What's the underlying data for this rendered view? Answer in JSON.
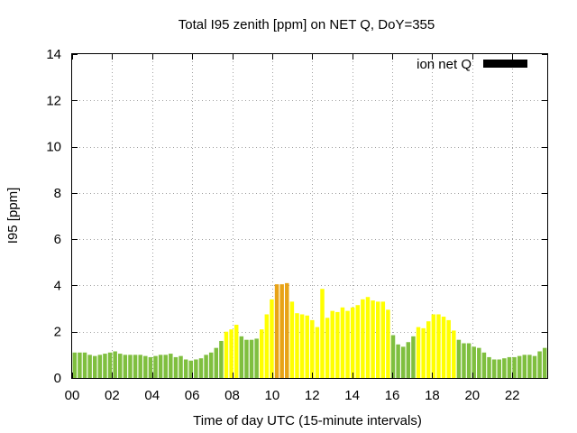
{
  "chart_data": {
    "type": "bar",
    "title": "Total I95 zenith [ppm] on NET Q, DoY=355",
    "xlabel": "Time of day UTC (15-minute intervals)",
    "ylabel": "I95 [ppm]",
    "xlim": [
      0,
      23.75
    ],
    "ylim": [
      0,
      14
    ],
    "xticks": [
      "00",
      "02",
      "04",
      "06",
      "08",
      "10",
      "12",
      "14",
      "16",
      "18",
      "20",
      "22"
    ],
    "yticks": [
      "0",
      "2",
      "4",
      "6",
      "8",
      "10",
      "12",
      "14"
    ],
    "grid": true,
    "legend": {
      "label": "ion net Q",
      "color": "#000000",
      "position": "top-right"
    },
    "colors": {
      "green": "#7fbf3f",
      "yellow": "#ffff00",
      "orange": "#e8a317"
    },
    "series": [
      {
        "values": [
          1.1,
          1.1,
          1.1,
          1.0,
          0.95,
          1.0,
          1.05,
          1.1,
          1.15,
          1.05,
          1.0,
          1.0,
          1.0,
          1.0,
          0.95,
          0.9,
          0.95,
          1.0,
          1.0,
          1.05,
          0.9,
          0.95,
          0.8,
          0.75,
          0.8,
          0.85,
          1.0,
          1.1,
          1.3,
          1.6,
          2.0,
          2.1,
          2.3,
          1.8,
          1.65,
          1.65,
          1.7,
          2.1,
          2.75,
          3.4,
          4.05,
          4.05,
          4.1,
          3.3,
          2.8,
          2.75,
          2.7,
          2.5,
          2.2,
          3.85,
          2.6,
          2.9,
          2.85,
          3.05,
          2.9,
          3.05,
          3.15,
          3.4,
          3.5,
          3.35,
          3.3,
          3.3,
          2.95,
          1.85,
          1.45,
          1.35,
          1.55,
          1.8,
          2.2,
          2.15,
          2.45,
          2.75,
          2.75,
          2.65,
          2.5,
          2.05,
          1.65,
          1.5,
          1.5,
          1.35,
          1.3,
          1.1,
          0.9,
          0.8,
          0.8,
          0.85,
          0.9,
          0.9,
          0.95,
          1.0,
          1.0,
          0.95,
          1.15,
          1.3
        ],
        "categories": [
          "G",
          "G",
          "G",
          "G",
          "G",
          "G",
          "G",
          "G",
          "G",
          "G",
          "G",
          "G",
          "G",
          "G",
          "G",
          "G",
          "G",
          "G",
          "G",
          "G",
          "G",
          "G",
          "G",
          "G",
          "G",
          "G",
          "G",
          "G",
          "G",
          "G",
          "Y",
          "Y",
          "Y",
          "G",
          "G",
          "G",
          "G",
          "Y",
          "Y",
          "Y",
          "O",
          "O",
          "O",
          "Y",
          "Y",
          "Y",
          "Y",
          "Y",
          "Y",
          "Y",
          "Y",
          "Y",
          "Y",
          "Y",
          "Y",
          "Y",
          "Y",
          "Y",
          "Y",
          "Y",
          "Y",
          "Y",
          "Y",
          "G",
          "G",
          "G",
          "G",
          "G",
          "Y",
          "Y",
          "Y",
          "Y",
          "Y",
          "Y",
          "Y",
          "Y",
          "G",
          "G",
          "G",
          "G",
          "G",
          "G",
          "G",
          "G",
          "G",
          "G",
          "G",
          "G",
          "G",
          "G",
          "G",
          "G",
          "G",
          "G"
        ]
      }
    ]
  }
}
